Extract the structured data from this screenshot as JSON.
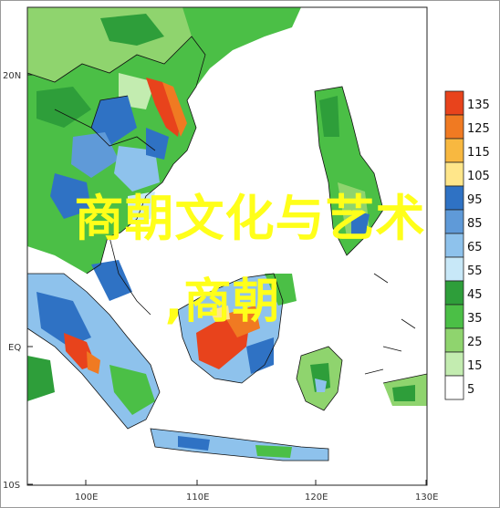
{
  "map": {
    "lat_labels": [
      "20N",
      "EQ",
      "10S"
    ],
    "lon_labels": [
      "100E",
      "110E",
      "120E",
      "130E"
    ],
    "lon_range": [
      94,
      130
    ],
    "lat_range": [
      -10,
      24
    ]
  },
  "legend": {
    "levels": [
      "135",
      "125",
      "115",
      "105",
      "95",
      "85",
      "65",
      "55",
      "45",
      "35",
      "25",
      "15",
      "5"
    ],
    "colors": [
      "#e8431c",
      "#f07a22",
      "#f8b840",
      "#ffe68a",
      "#2f72c4",
      "#5f9ad8",
      "#8ec2ec",
      "#c8e8f8",
      "#2e9e3a",
      "#4bbf46",
      "#8fd46e",
      "#c3ecb0",
      "#ffffff"
    ]
  },
  "overlay": {
    "title": "商朝文化与艺术",
    "subtitle": ",商朝"
  }
}
